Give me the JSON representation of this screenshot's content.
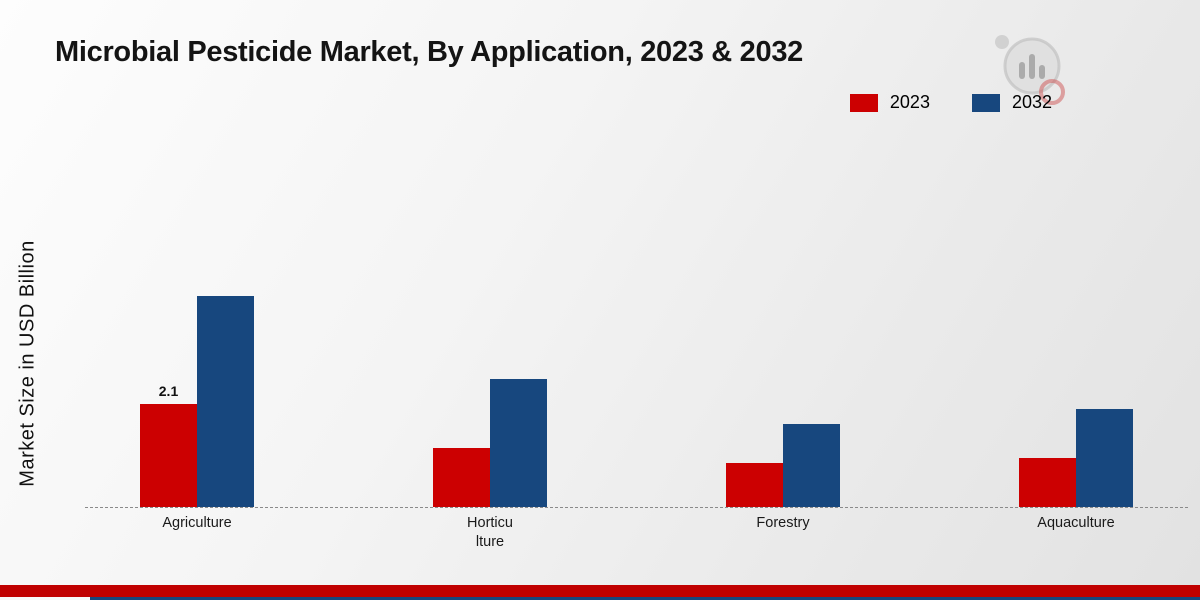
{
  "chart_data": {
    "type": "bar",
    "title": "Microbial Pesticide Market, By Application, 2023 & 2032",
    "ylabel": "Market Size in USD Billion",
    "xlabel": "",
    "categories": [
      "Agriculture",
      "Horticulture",
      "Forestry",
      "Aquaculture"
    ],
    "category_lines": [
      [
        "Agriculture"
      ],
      [
        "Horticu",
        "lture"
      ],
      [
        "Forestry"
      ],
      [
        "Aquaculture"
      ]
    ],
    "series": [
      {
        "name": "2023",
        "color": "#cc0001",
        "values": [
          2.1,
          1.2,
          0.9,
          1.0
        ],
        "data_labels": [
          "2.1",
          "",
          "",
          ""
        ]
      },
      {
        "name": "2032",
        "color": "#17477e",
        "values": [
          4.3,
          2.6,
          1.7,
          2.0
        ],
        "data_labels": [
          "",
          "",
          "",
          ""
        ]
      }
    ],
    "ylim": [
      0,
      4.5
    ],
    "grid": false,
    "legend_position": "top-right",
    "baseline_style": "dashed"
  },
  "icons": {
    "logo": "market-research-chart-logo"
  },
  "footer": {
    "red_stripe_color": "#c00000",
    "navy_stripe_color": "#17477e"
  }
}
